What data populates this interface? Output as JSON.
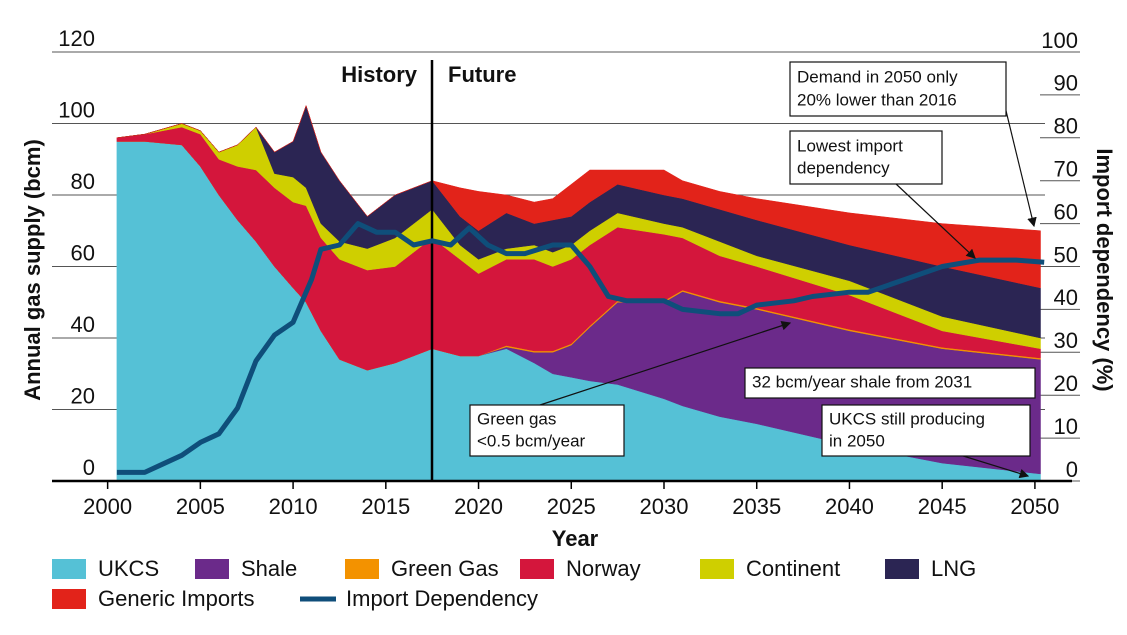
{
  "chart_data": {
    "type": "area",
    "stacked": true,
    "x_label": "Year",
    "y_label": "Annual gas supply (bcm)",
    "y2_label": "Import dependency (%)",
    "xlim": [
      1997,
      2052
    ],
    "xticks": [
      2000,
      2005,
      2010,
      2015,
      2020,
      2025,
      2030,
      2035,
      2040,
      2045,
      2050
    ],
    "ylim": [
      0,
      120
    ],
    "yticks": [
      0,
      20,
      40,
      60,
      80,
      100,
      120
    ],
    "y2lim": [
      0,
      100
    ],
    "y2ticks": [
      0,
      10,
      20,
      30,
      40,
      50,
      60,
      70,
      80,
      90,
      100
    ],
    "grid": true,
    "x": [
      2000.5,
      2002,
      2004,
      2005,
      2006,
      2007,
      2008,
      2009,
      2010,
      2010.7,
      2011.5,
      2012.5,
      2014,
      2015.5,
      2017.5,
      2019,
      2020,
      2021.5,
      2023,
      2024,
      2025,
      2026,
      2027.5,
      2030,
      2031,
      2033,
      2035,
      2040,
      2045,
      2050.3
    ],
    "series": [
      {
        "name": "UKCS",
        "color": "#55c1d6",
        "values": [
          95,
          95,
          94,
          88,
          80,
          73,
          67,
          60,
          54,
          50,
          42,
          34,
          31,
          33,
          37,
          35,
          35,
          37,
          33,
          30,
          29,
          28,
          27,
          23,
          21,
          18,
          16,
          10,
          5,
          2
        ]
      },
      {
        "name": "Shale",
        "color": "#6b2a8a",
        "values": [
          0,
          0,
          0,
          0,
          0,
          0,
          0,
          0,
          0,
          0,
          0,
          0,
          0,
          0,
          0,
          0,
          0,
          0.5,
          3,
          6,
          9,
          15,
          23,
          27,
          32,
          32,
          32,
          32,
          32,
          32
        ]
      },
      {
        "name": "Green Gas",
        "color": "#f39200",
        "values": [
          0,
          0,
          0,
          0,
          0,
          0,
          0,
          0,
          0,
          0,
          0,
          0,
          0,
          0,
          0,
          0,
          0,
          0.4,
          0.4,
          0.4,
          0.4,
          0.4,
          0.4,
          0.4,
          0.4,
          0.4,
          0.4,
          0.4,
          0.4,
          0.4
        ]
      },
      {
        "name": "Norway",
        "color": "#d4163c",
        "values": [
          1,
          2,
          5,
          9,
          10,
          15,
          20,
          22,
          24,
          27,
          26,
          28,
          28,
          27,
          31,
          27,
          23,
          24.1,
          25.6,
          23.6,
          23.6,
          22.6,
          20.6,
          18.6,
          14.6,
          12.6,
          11.6,
          9.6,
          4.6,
          2.6
        ]
      },
      {
        "name": "Continent",
        "color": "#cfcf00",
        "values": [
          0,
          0,
          1,
          1,
          2,
          6,
          12,
          4,
          7,
          5,
          4,
          5,
          6,
          8,
          8,
          4,
          4,
          3,
          4,
          4,
          4,
          4,
          4,
          3,
          3,
          4,
          3,
          4,
          4,
          3
        ]
      },
      {
        "name": "LNG",
        "color": "#2b2553",
        "values": [
          0,
          0,
          0,
          0,
          0,
          0,
          0,
          6,
          10,
          23,
          20,
          17,
          9,
          12,
          8,
          8,
          8,
          10,
          6,
          9,
          8,
          8,
          8,
          8,
          8,
          9,
          10,
          10,
          14,
          14
        ]
      },
      {
        "name": "Generic Imports",
        "color": "#e2231a",
        "values": [
          0,
          0,
          0,
          0,
          0,
          0,
          0,
          0,
          0,
          0,
          0,
          0,
          0,
          0,
          0,
          8,
          11,
          5,
          6,
          6,
          9,
          9,
          4,
          7,
          5,
          5,
          6,
          9,
          12,
          16
        ]
      },
      {
        "name": "Import Dependency",
        "color": "#0f4e7a",
        "type": "line",
        "axis": "y2",
        "x": [
          2000.5,
          2002,
          2003,
          2004,
          2005,
          2006,
          2007,
          2008,
          2009,
          2010,
          2011,
          2011.5,
          2012.5,
          2013.5,
          2014.5,
          2015.5,
          2016.5,
          2017.5,
          2018.5,
          2019.5,
          2020.5,
          2021.5,
          2022.5,
          2024,
          2025,
          2026,
          2027,
          2028,
          2030,
          2031,
          2033,
          2034,
          2035,
          2037,
          2038,
          2040,
          2041,
          2043,
          2045,
          2047,
          2049,
          2050.5
        ],
        "values": [
          2,
          2,
          4,
          6,
          9,
          11,
          17,
          28,
          34,
          37,
          47,
          54,
          55,
          60,
          58,
          58,
          55,
          56,
          55,
          59,
          55,
          53,
          53,
          55,
          55,
          50,
          43,
          42,
          42,
          40,
          39,
          39,
          41,
          42,
          43,
          44,
          44,
          47,
          50,
          51.5,
          51.5,
          51
        ]
      }
    ],
    "annotations": [
      "History",
      "Future",
      [
        "Demand in 2050 only",
        "20% lower than 2016"
      ],
      [
        "Lowest import",
        "dependency"
      ],
      "32 bcm/year shale from 2031",
      [
        "UKCS still producing",
        "in 2050"
      ],
      [
        "Green gas",
        "<0.5 bcm/year"
      ]
    ]
  }
}
